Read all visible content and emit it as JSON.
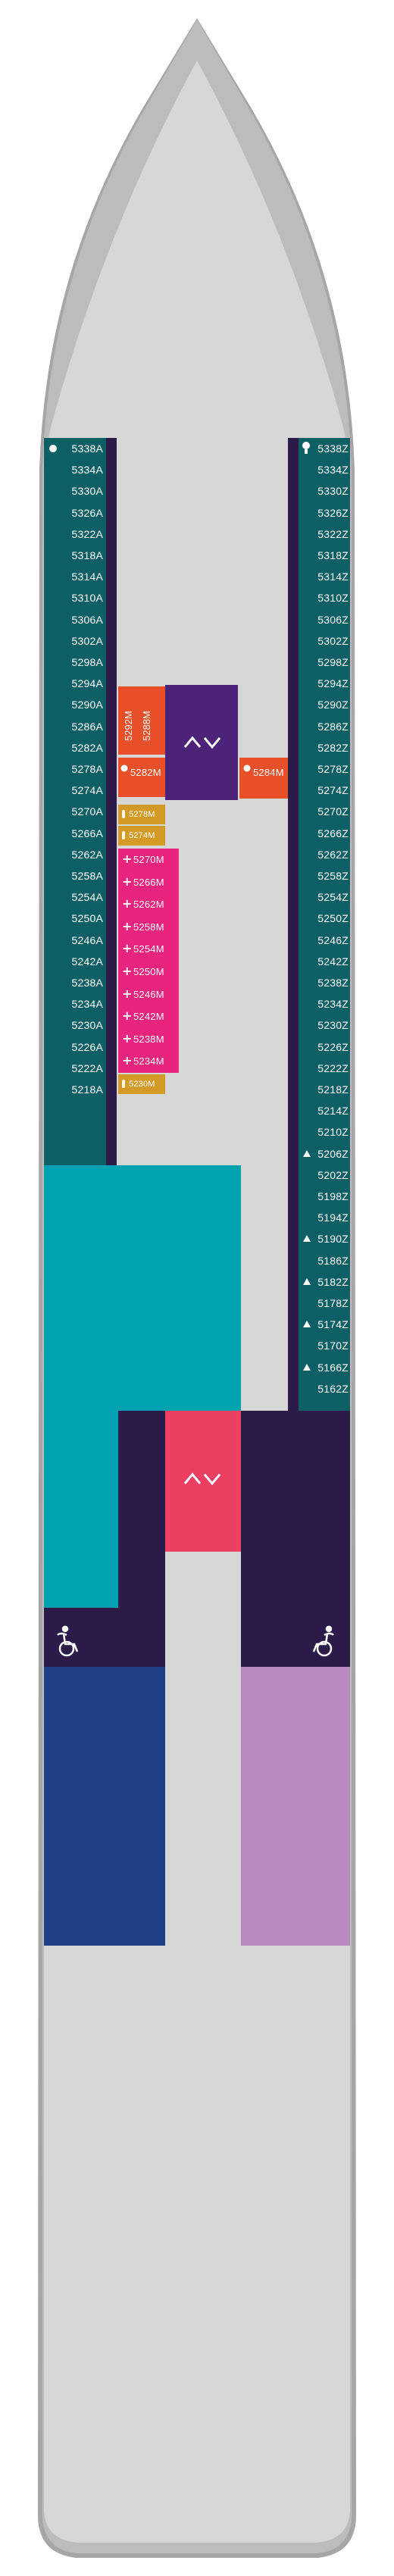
{
  "colors": {
    "hull_fill": "#d8d7d7",
    "hull_outline": "#a7a6a6",
    "hull_shadow": "#bdbcbc",
    "dark_purple": "#2b1b48",
    "teal_cabin": "#0d5f66",
    "turquoise": "#00a2b2",
    "navy": "#1f3f86",
    "lavender": "#b989c0",
    "orange": "#e8502a",
    "magenta": "#e8247f",
    "gold": "#d39b25",
    "mid_purple": "#4b2378",
    "pink_red": "#ec4063"
  },
  "cabins": {
    "port": [
      "5338A",
      "5334A",
      "5330A",
      "5326A",
      "5322A",
      "5318A",
      "5314A",
      "5310A",
      "5306A",
      "5302A",
      "5298A",
      "5294A",
      "5290A",
      "5286A",
      "5282A",
      "5278A",
      "5274A",
      "5270A",
      "5266A",
      "5262A",
      "5258A",
      "5254A",
      "5250A",
      "5246A",
      "5242A",
      "5238A",
      "5234A",
      "5230A",
      "5226A",
      "5222A",
      "5218A"
    ],
    "starboard": [
      "5338Z",
      "5334Z",
      "5330Z",
      "5326Z",
      "5322Z",
      "5318Z",
      "5314Z",
      "5310Z",
      "5306Z",
      "5302Z",
      "5298Z",
      "5294Z",
      "5290Z",
      "5286Z",
      "5282Z",
      "5278Z",
      "5274Z",
      "5270Z",
      "5266Z",
      "5262Z",
      "5258Z",
      "5254Z",
      "5250Z",
      "5246Z",
      "5242Z",
      "5238Z",
      "5234Z",
      "5230Z",
      "5226Z",
      "5222Z",
      "5218Z",
      "5214Z",
      "5210Z",
      "5206Z",
      "5202Z",
      "5198Z",
      "5194Z",
      "5190Z",
      "5186Z",
      "5182Z",
      "5178Z",
      "5174Z",
      "5170Z",
      "5166Z",
      "5162Z"
    ],
    "inner_magenta": [
      "5270M",
      "5266M",
      "5262M",
      "5258M",
      "5254M",
      "5250M",
      "5246M",
      "5242M",
      "5238M",
      "5234M"
    ],
    "inner_gold": [
      "5278M",
      "5274M",
      "5230M"
    ],
    "inner_orange_vertical": [
      "5292M",
      "5288M"
    ],
    "inner_orange_left": "5282M",
    "inner_orange_right": "5284M"
  },
  "icons": {
    "elevator": "elevator-icon",
    "wheelchair": "wheelchair-accessible-icon",
    "dot": "dot-marker-icon",
    "triangle": "triangle-marker-icon",
    "plus": "plus-marker-icon",
    "seat": "seat-marker-icon"
  },
  "markers": {
    "port_dot_cabin": "5338A",
    "starboard_seat_cabin": "5338Z",
    "starboard_triangle_cabins": [
      "5206Z",
      "5190Z",
      "5182Z",
      "5174Z",
      "5166Z"
    ]
  }
}
